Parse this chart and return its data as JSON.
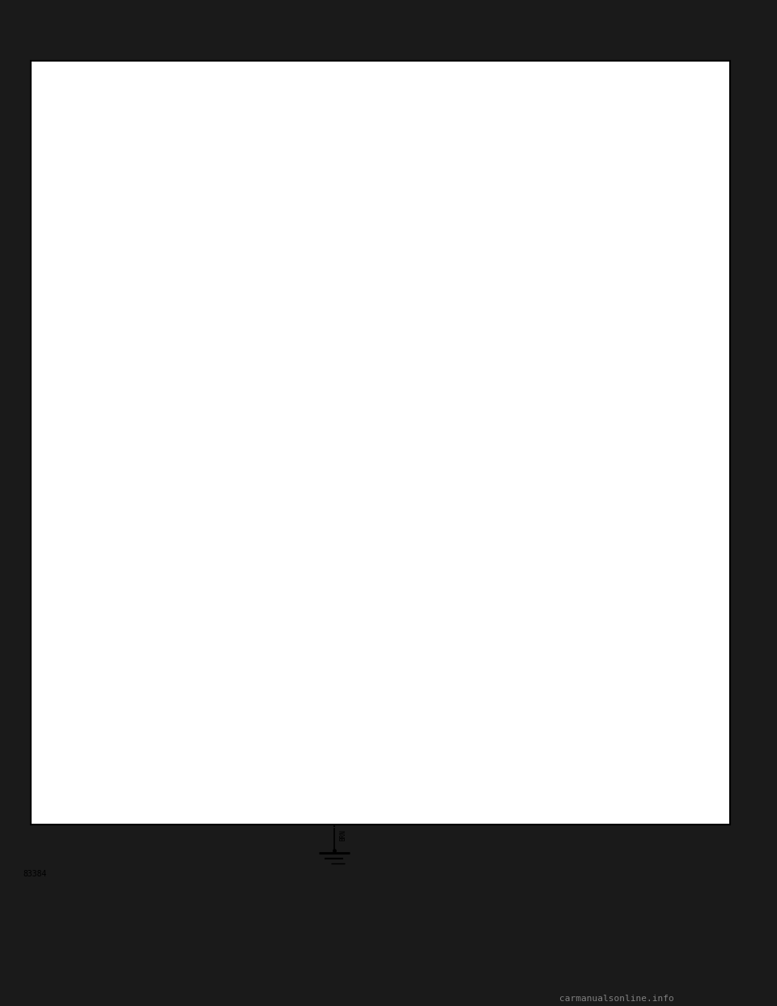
{
  "bg_color": "#1a1a1a",
  "diagram_bg": "#ffffff",
  "line_color": "#000000",
  "text_color": "#000000",
  "page_number": "83384",
  "watermark": "carmanualsonline.info"
}
